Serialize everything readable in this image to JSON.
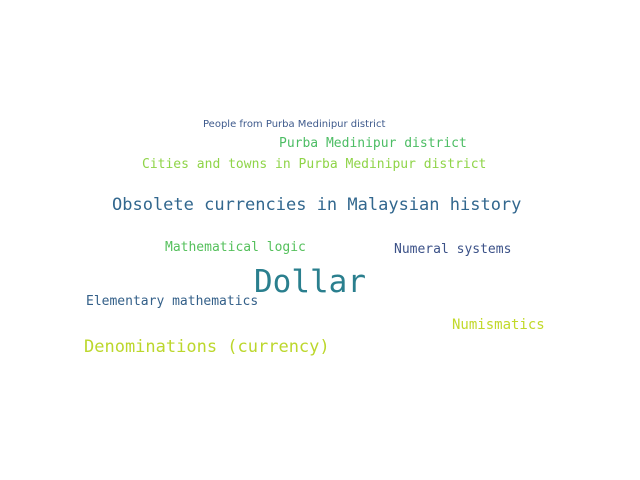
{
  "words": [
    {
      "text": "People from Purba Medinipur district",
      "color": "#3e5a8c"
    },
    {
      "text": "Purba Medinipur district",
      "color": "#4cbd64"
    },
    {
      "text": "Cities and towns in Purba Medinipur district",
      "color": "#8fd448"
    },
    {
      "text": "Obsolete currencies in Malaysian history",
      "color": "#32678e"
    },
    {
      "text": "Mathematical logic",
      "color": "#55c05c"
    },
    {
      "text": "Numeral systems",
      "color": "#3c5288"
    },
    {
      "text": "Dollar",
      "color": "#2a7f8e"
    },
    {
      "text": "Elementary mathematics",
      "color": "#346089"
    },
    {
      "text": "Numismatics",
      "color": "#c2d92a"
    },
    {
      "text": "Denominations (currency)",
      "color": "#bcd72c"
    }
  ]
}
